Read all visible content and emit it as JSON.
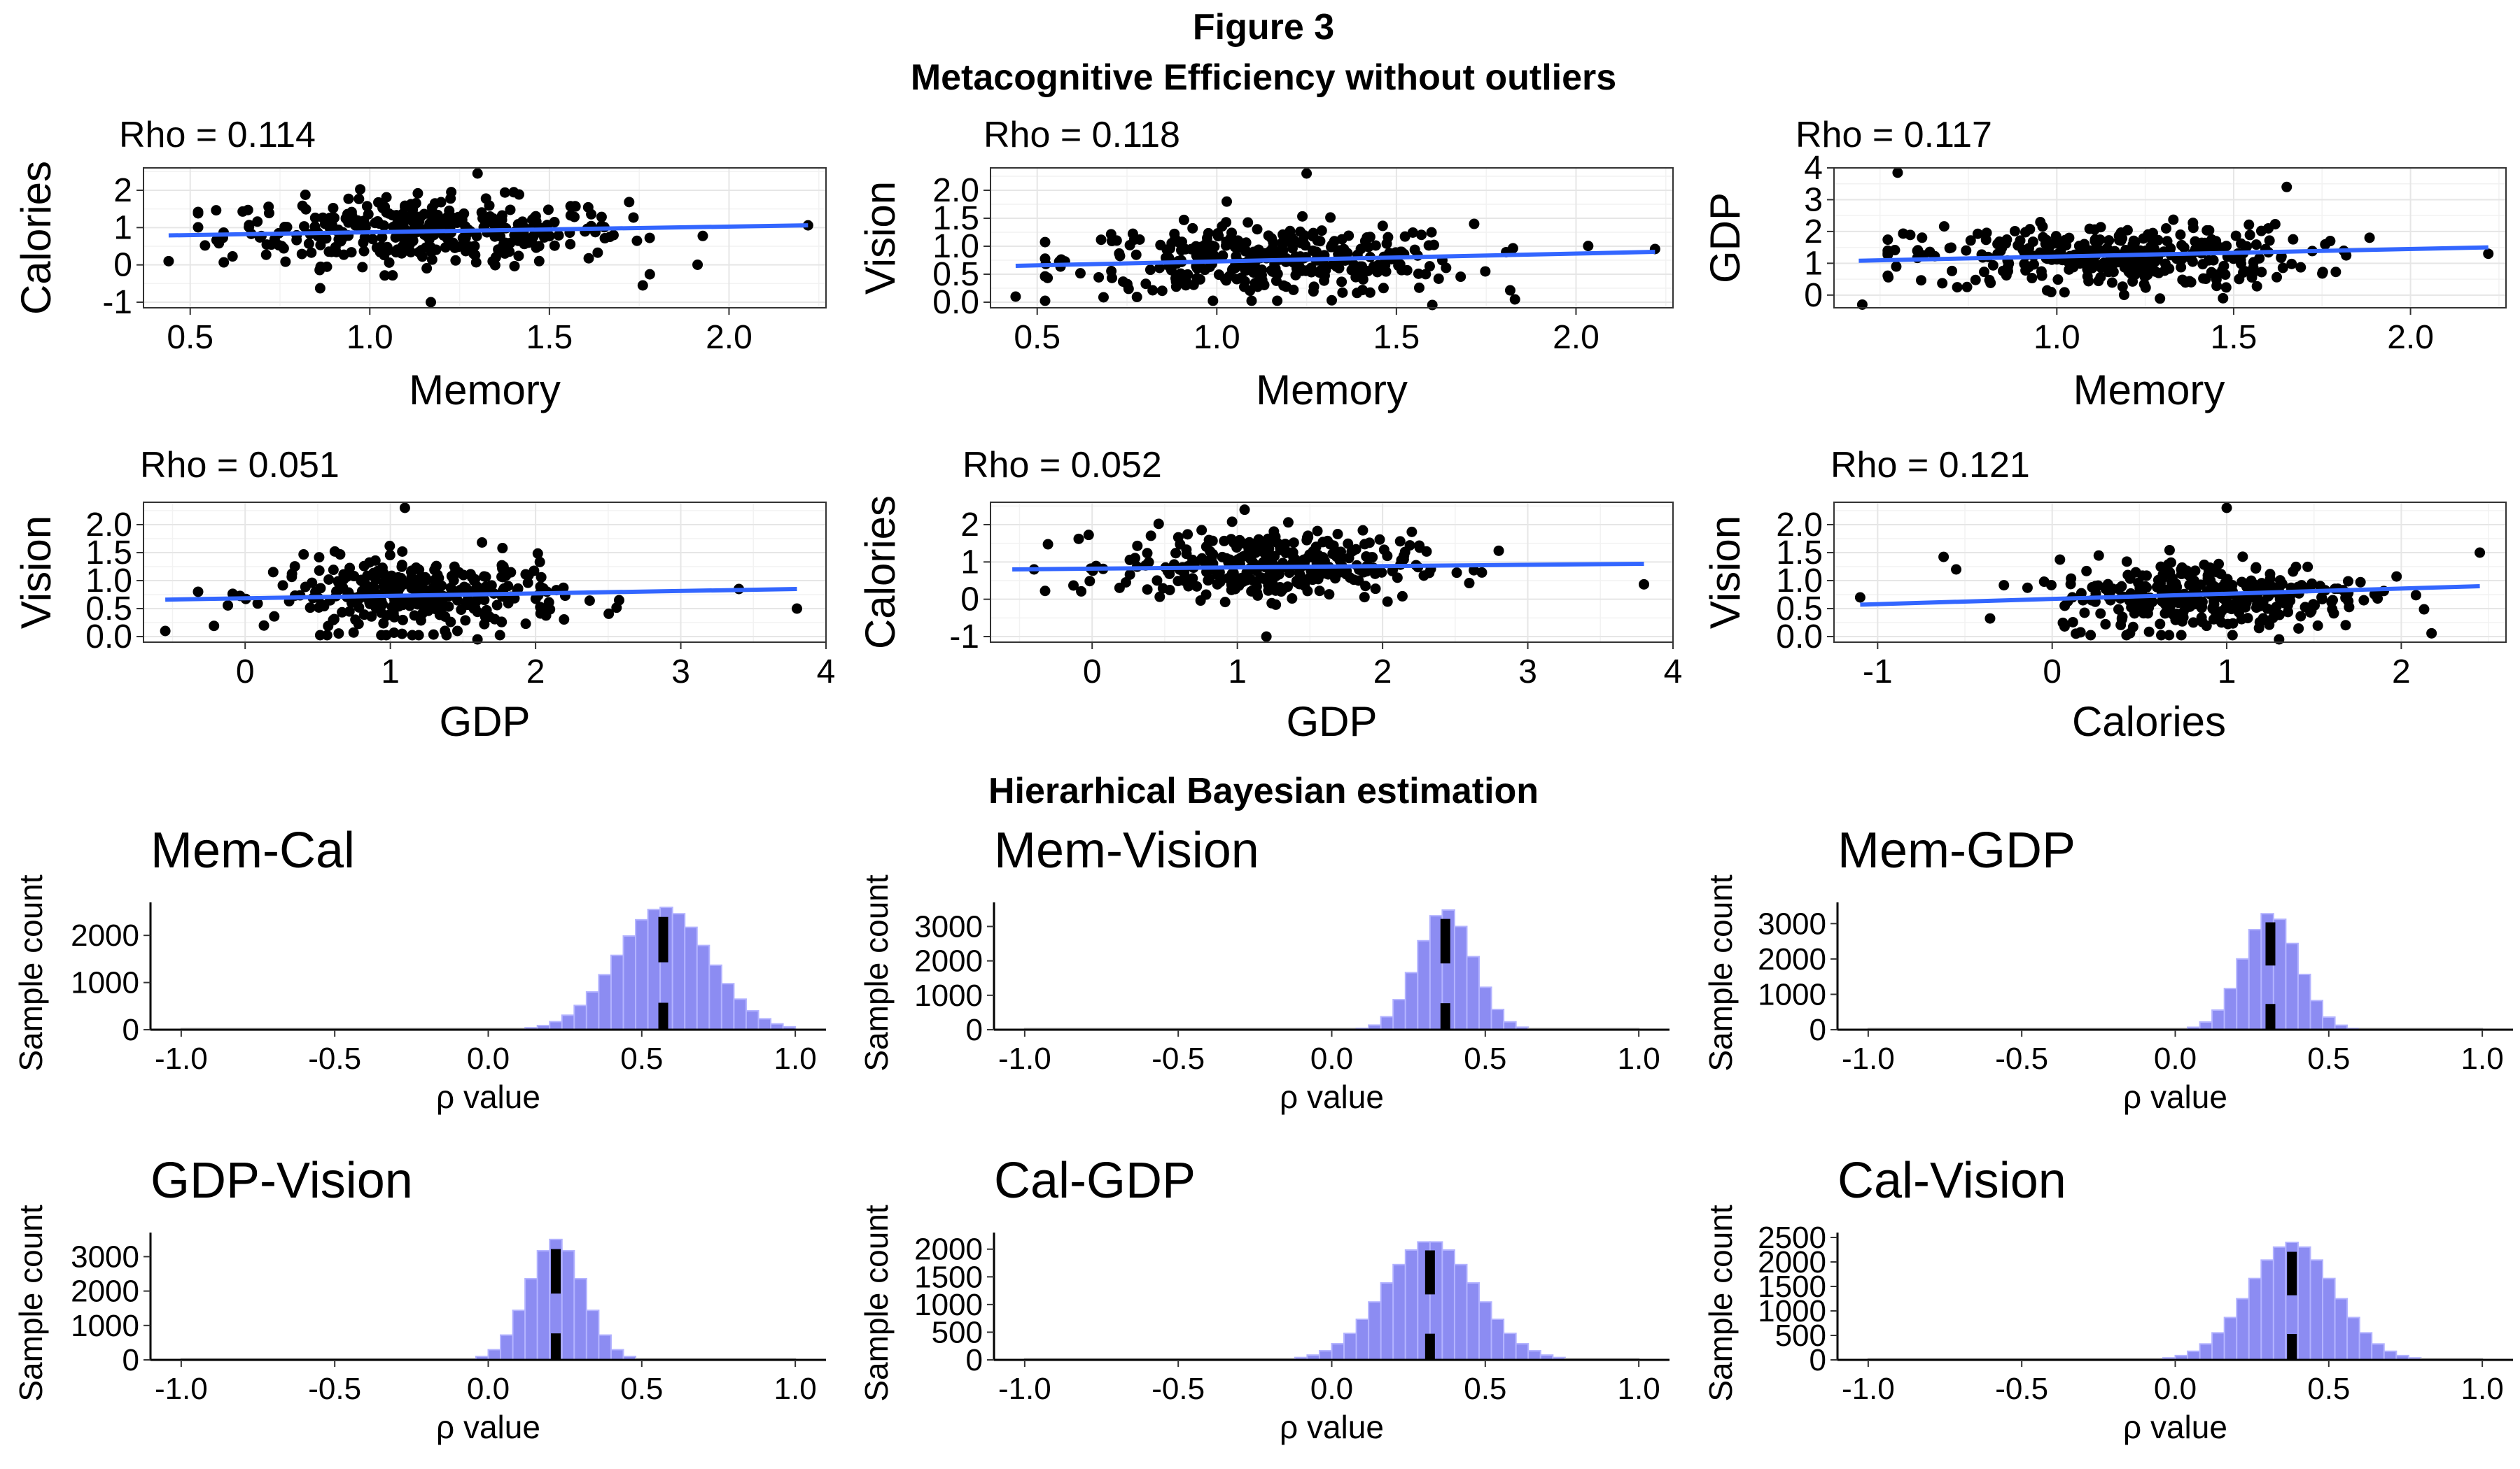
{
  "figure": {
    "title_line1": "Figure 3",
    "title_line2": "Metacognitive Efficiency without outliers",
    "section2_title": "Hierarhical Bayesian estimation"
  },
  "colors": {
    "point": "#000000",
    "fit_line": "#3366ff",
    "hist_fill": "#8c8cf2",
    "hist_outline": "#b3b3ff",
    "hist_marker": "#000000"
  },
  "chart_data": [
    {
      "type": "scatter",
      "rho_label": "Rho = 0.114",
      "xlabel": "Memory",
      "ylabel": "Calories",
      "xlim": [
        0.37,
        2.27
      ],
      "ylim": [
        -1.15,
        2.6
      ],
      "xticks": [
        0.5,
        1.0,
        1.5,
        2.0
      ],
      "xtick_labels": [
        "0.5",
        "1.0",
        "1.5",
        "2.0"
      ],
      "yticks": [
        -1,
        0,
        1,
        2
      ],
      "ytick_labels": [
        "-1",
        "0",
        "1",
        "2"
      ],
      "x_center": 1.15,
      "x_sd": 0.28,
      "y_center": 0.9,
      "y_sd": 0.45,
      "fit": [
        [
          0.44,
          0.79
        ],
        [
          2.22,
          1.06
        ]
      ],
      "extremes": [
        [
          0.44,
          0.1
        ],
        [
          1.3,
          2.45
        ],
        [
          1.17,
          -1.0
        ],
        [
          2.22,
          1.06
        ],
        [
          1.76,
          -0.55
        ]
      ]
    },
    {
      "type": "scatter",
      "rho_label": "Rho = 0.118",
      "xlabel": "Memory",
      "ylabel": "Vision",
      "xlim": [
        0.37,
        2.27
      ],
      "ylim": [
        -0.1,
        2.4
      ],
      "xticks": [
        0.5,
        1.0,
        1.5,
        2.0
      ],
      "xtick_labels": [
        "0.5",
        "1.0",
        "1.5",
        "2.0"
      ],
      "yticks": [
        0.0,
        0.5,
        1.0,
        1.5,
        2.0
      ],
      "ytick_labels": [
        "0.0",
        "0.5",
        "1.0",
        "1.5",
        "2.0"
      ],
      "x_center": 1.15,
      "x_sd": 0.28,
      "y_center": 0.75,
      "y_sd": 0.32,
      "fit": [
        [
          0.44,
          0.65
        ],
        [
          2.22,
          0.9
        ]
      ],
      "extremes": [
        [
          1.25,
          2.3
        ],
        [
          0.44,
          0.1
        ],
        [
          1.6,
          -0.05
        ],
        [
          2.22,
          0.95
        ],
        [
          1.83,
          0.05
        ]
      ]
    },
    {
      "type": "scatter",
      "rho_label": "Rho = 0.117",
      "xlabel": "Memory",
      "ylabel": "GDP",
      "xlim": [
        0.37,
        2.27
      ],
      "ylim": [
        -0.4,
        4.0
      ],
      "xticks": [
        1.0,
        1.5,
        2.0
      ],
      "xtick_labels": [
        "1.0",
        "1.5",
        "2.0"
      ],
      "yticks": [
        0,
        1,
        2,
        3,
        4
      ],
      "ytick_labels": [
        "0",
        "1",
        "2",
        "3",
        "4"
      ],
      "x_center": 1.15,
      "x_sd": 0.28,
      "y_center": 1.2,
      "y_sd": 0.5,
      "fit": [
        [
          0.44,
          1.08
        ],
        [
          2.22,
          1.5
        ]
      ],
      "extremes": [
        [
          0.55,
          3.85
        ],
        [
          0.45,
          -0.3
        ],
        [
          1.47,
          -0.1
        ],
        [
          1.65,
          3.4
        ],
        [
          2.22,
          1.3
        ]
      ]
    },
    {
      "type": "scatter",
      "rho_label": "Rho = 0.051",
      "xlabel": "GDP",
      "ylabel": "Vision",
      "xlim": [
        -0.7,
        4.0
      ],
      "ylim": [
        -0.1,
        2.4
      ],
      "xticks": [
        0,
        1,
        2,
        3,
        4
      ],
      "xtick_labels": [
        "0",
        "1",
        "2",
        "3",
        "4"
      ],
      "yticks": [
        0.0,
        0.5,
        1.0,
        1.5,
        2.0
      ],
      "ytick_labels": [
        "0.0",
        "0.5",
        "1.0",
        "1.5",
        "2.0"
      ],
      "x_center": 1.2,
      "x_sd": 0.5,
      "y_center": 0.75,
      "y_sd": 0.32,
      "fit": [
        [
          -0.55,
          0.66
        ],
        [
          3.8,
          0.85
        ]
      ],
      "extremes": [
        [
          1.1,
          2.3
        ],
        [
          -0.55,
          0.1
        ],
        [
          3.8,
          0.5
        ],
        [
          3.4,
          0.85
        ],
        [
          1.6,
          -0.05
        ]
      ]
    },
    {
      "type": "scatter",
      "rho_label": "Rho = 0.052",
      "xlabel": "GDP",
      "ylabel": "Calories",
      "xlim": [
        -0.7,
        4.0
      ],
      "ylim": [
        -1.15,
        2.6
      ],
      "xticks": [
        0,
        1,
        2,
        3,
        4
      ],
      "xtick_labels": [
        "0",
        "1",
        "2",
        "3",
        "4"
      ],
      "yticks": [
        -1,
        0,
        1,
        2
      ],
      "ytick_labels": [
        "-1",
        "0",
        "1",
        "2"
      ],
      "x_center": 1.2,
      "x_sd": 0.5,
      "y_center": 0.9,
      "y_sd": 0.45,
      "fit": [
        [
          -0.55,
          0.8
        ],
        [
          3.8,
          0.95
        ]
      ],
      "extremes": [
        [
          1.05,
          2.4
        ],
        [
          1.2,
          -1.0
        ],
        [
          3.8,
          0.4
        ],
        [
          -0.4,
          0.8
        ],
        [
          2.8,
          1.3
        ]
      ]
    },
    {
      "type": "scatter",
      "rho_label": "Rho = 0.121",
      "xlabel": "Calories",
      "ylabel": "Vision",
      "xlim": [
        -1.25,
        2.6
      ],
      "ylim": [
        -0.1,
        2.4
      ],
      "xticks": [
        -1,
        0,
        1,
        2
      ],
      "xtick_labels": [
        "-1",
        "0",
        "1",
        "2"
      ],
      "yticks": [
        0.0,
        0.5,
        1.0,
        1.5,
        2.0
      ],
      "ytick_labels": [
        "0.0",
        "0.5",
        "1.0",
        "1.5",
        "2.0"
      ],
      "x_center": 0.9,
      "x_sd": 0.45,
      "y_center": 0.75,
      "y_sd": 0.32,
      "fit": [
        [
          -1.1,
          0.57
        ],
        [
          2.45,
          0.9
        ]
      ],
      "extremes": [
        [
          1.0,
          2.3
        ],
        [
          -1.1,
          0.7
        ],
        [
          2.45,
          1.5
        ],
        [
          -0.55,
          1.2
        ],
        [
          1.3,
          -0.05
        ]
      ]
    },
    {
      "type": "bar",
      "title": "Mem-Cal",
      "xlabel": "ρ value",
      "ylabel": "Sample count",
      "xlim": [
        -1.1,
        1.1
      ],
      "ylim": [
        0,
        2700
      ],
      "xticks": [
        -1.0,
        -0.5,
        0.0,
        0.5,
        1.0
      ],
      "xtick_labels": [
        "-1.0",
        "-0.5",
        "0.0",
        "0.5",
        "1.0"
      ],
      "yticks": [
        0,
        1000,
        2000
      ],
      "ytick_labels": [
        "0",
        "1000",
        "2000"
      ],
      "mean": 0.57,
      "sd": 0.15,
      "peak": 2600,
      "skew": 0.0,
      "marker": 0.57
    },
    {
      "type": "bar",
      "title": "Mem-Vision",
      "xlabel": "ρ value",
      "ylabel": "Sample count",
      "xlim": [
        -1.1,
        1.1
      ],
      "ylim": [
        0,
        3700
      ],
      "xticks": [
        -1.0,
        -0.5,
        0.0,
        0.5,
        1.0
      ],
      "xtick_labels": [
        "-1.0",
        "-0.5",
        "0.0",
        "0.5",
        "1.0"
      ],
      "yticks": [
        0,
        1000,
        2000,
        3000
      ],
      "ytick_labels": [
        "0",
        "1000",
        "2000",
        "3000"
      ],
      "mean": 0.37,
      "sd": 0.09,
      "peak": 3500,
      "skew": 0.0,
      "marker": 0.37
    },
    {
      "type": "bar",
      "title": "Mem-GDP",
      "xlabel": "ρ value",
      "ylabel": "Sample count",
      "xlim": [
        -1.1,
        1.1
      ],
      "ylim": [
        0,
        3600
      ],
      "xticks": [
        -1.0,
        -0.5,
        0.0,
        0.5,
        1.0
      ],
      "xtick_labels": [
        "-1.0",
        "-0.5",
        "0.0",
        "0.5",
        "1.0"
      ],
      "yticks": [
        0,
        1000,
        2000,
        3000
      ],
      "ytick_labels": [
        "0",
        "1000",
        "2000",
        "3000"
      ],
      "mean": 0.31,
      "sd": 0.09,
      "peak": 3300,
      "skew": 0.0,
      "marker": 0.31
    },
    {
      "type": "bar",
      "title": "GDP-Vision",
      "xlabel": "ρ value",
      "ylabel": "Sample count",
      "xlim": [
        -1.1,
        1.1
      ],
      "ylim": [
        0,
        3700
      ],
      "xticks": [
        -1.0,
        -0.5,
        0.0,
        0.5,
        1.0
      ],
      "xtick_labels": [
        "-1.0",
        "-0.5",
        "0.0",
        "0.5",
        "1.0"
      ],
      "yticks": [
        0,
        1000,
        2000,
        3000
      ],
      "ytick_labels": [
        "0",
        "1000",
        "2000",
        "3000"
      ],
      "mean": 0.22,
      "sd": 0.09,
      "peak": 3500,
      "skew": 0.0,
      "marker": 0.22
    },
    {
      "type": "bar",
      "title": "Cal-GDP",
      "xlabel": "ρ value",
      "ylabel": "Sample count",
      "xlim": [
        -1.1,
        1.1
      ],
      "ylim": [
        0,
        2300
      ],
      "xticks": [
        -1.0,
        -0.5,
        0.0,
        0.5,
        1.0
      ],
      "xtick_labels": [
        "-1.0",
        "-0.5",
        "0.0",
        "0.5",
        "1.0"
      ],
      "yticks": [
        0,
        500,
        1000,
        1500,
        2000
      ],
      "ytick_labels": [
        "0",
        "500",
        "1000",
        "1500",
        "2000"
      ],
      "mean": 0.32,
      "sd": 0.15,
      "peak": 2150,
      "skew": 0.0,
      "marker": 0.32
    },
    {
      "type": "bar",
      "title": "Cal-Vision",
      "xlabel": "ρ value",
      "ylabel": "Sample count",
      "xlim": [
        -1.1,
        1.1
      ],
      "ylim": [
        0,
        2600
      ],
      "xticks": [
        -1.0,
        -0.5,
        0.0,
        0.5,
        1.0
      ],
      "xtick_labels": [
        "-1.0",
        "-0.5",
        "0.0",
        "0.5",
        "1.0"
      ],
      "yticks": [
        0,
        500,
        1000,
        1500,
        2000,
        2500
      ],
      "ytick_labels": [
        "0",
        "500",
        "1000",
        "1500",
        "2000",
        "2500"
      ],
      "mean": 0.38,
      "sd": 0.14,
      "peak": 2400,
      "skew": 0.0,
      "marker": 0.38
    }
  ]
}
